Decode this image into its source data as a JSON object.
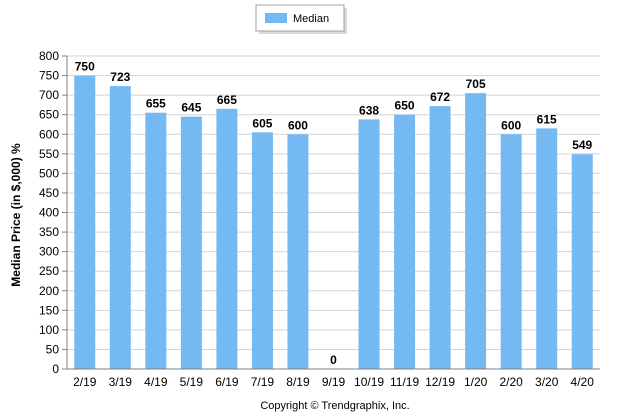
{
  "chart_data": {
    "type": "bar",
    "categories": [
      "2/19",
      "3/19",
      "4/19",
      "5/19",
      "6/19",
      "7/19",
      "8/19",
      "9/19",
      "10/19",
      "11/19",
      "12/19",
      "1/20",
      "2/20",
      "3/20",
      "4/20"
    ],
    "series": [
      {
        "name": "Median",
        "values": [
          750,
          723,
          655,
          645,
          665,
          605,
          600,
          0,
          638,
          650,
          672,
          705,
          600,
          615,
          549
        ]
      }
    ],
    "ylabel": "Median Price (in $,000) %",
    "xlabel": "",
    "ylim": [
      0,
      800
    ],
    "ytick_step": 50,
    "grid": true,
    "legend_position": "top-center",
    "bar_color": "#75b9f2",
    "data_labels": true
  },
  "footer": {
    "copyright": "Copyright © Trendgraphix, Inc."
  }
}
